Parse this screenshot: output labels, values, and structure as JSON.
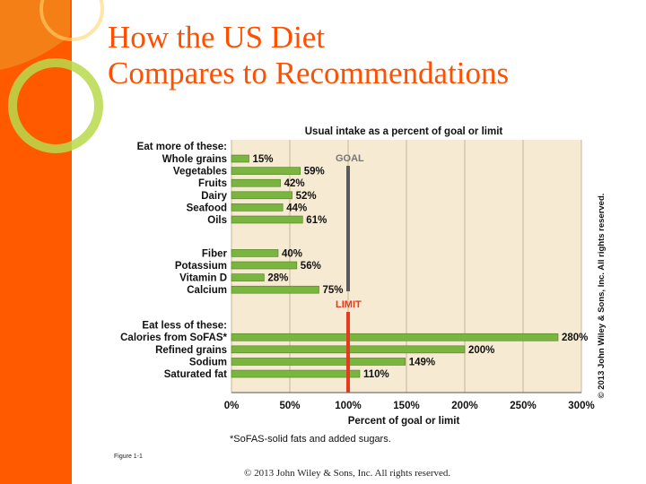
{
  "slide": {
    "title_line1": "How the US Diet",
    "title_line2": "Compares to Recommendations",
    "figure_label": "Figure 1-1",
    "copyright": "© 2013 John Wiley & Sons, Inc. All rights reserved."
  },
  "theme": {
    "accent": "#ff5a00",
    "title_color": "#ff4f00",
    "plot_bg": "#f6ead2",
    "bar_fill": "#7ab53f",
    "goal_line": "#5a5a5a",
    "limit_line": "#e43a1f",
    "limit_text": "#e43a1f",
    "goal_text": "#777777"
  },
  "chart_data": {
    "type": "bar",
    "orientation": "horizontal",
    "title": "Usual intake as a percent of goal or limit",
    "xlabel": "Percent of goal or limit",
    "footnote": "*SoFAS-solid fats and added sugars.",
    "side_credit": "© 2013 John Wiley & Sons, Inc. All rights reserved.",
    "xlim": [
      0,
      300
    ],
    "xticks": [
      0,
      50,
      100,
      150,
      200,
      250,
      300
    ],
    "xtick_labels": [
      "0%",
      "50%",
      "100%",
      "150%",
      "200%",
      "250%",
      "300%"
    ],
    "goal_label": "GOAL",
    "limit_label": "LIMIT",
    "reference_value": 100,
    "groups": [
      {
        "heading": "Eat more of these:",
        "reference": "goal",
        "items": [
          {
            "name": "Whole grains",
            "value": 15,
            "label": "15%"
          },
          {
            "name": "Vegetables",
            "value": 59,
            "label": "59%"
          },
          {
            "name": "Fruits",
            "value": 42,
            "label": "42%"
          },
          {
            "name": "Dairy",
            "value": 52,
            "label": "52%"
          },
          {
            "name": "Seafood",
            "value": 44,
            "label": "44%"
          },
          {
            "name": "Oils",
            "value": 61,
            "label": "61%"
          },
          {
            "name": "Fiber",
            "value": 40,
            "label": "40%",
            "gap_before": true
          },
          {
            "name": "Potassium",
            "value": 56,
            "label": "56%"
          },
          {
            "name": "Vitamin D",
            "value": 28,
            "label": "28%"
          },
          {
            "name": "Calcium",
            "value": 75,
            "label": "75%"
          }
        ]
      },
      {
        "heading": "Eat less of these:",
        "reference": "limit",
        "items": [
          {
            "name": "Calories from SoFAS*",
            "value": 280,
            "label": "280%"
          },
          {
            "name": "Refined grains",
            "value": 200,
            "label": "200%"
          },
          {
            "name": "Sodium",
            "value": 149,
            "label": "149%"
          },
          {
            "name": "Saturated fat",
            "value": 110,
            "label": "110%"
          }
        ]
      }
    ]
  }
}
